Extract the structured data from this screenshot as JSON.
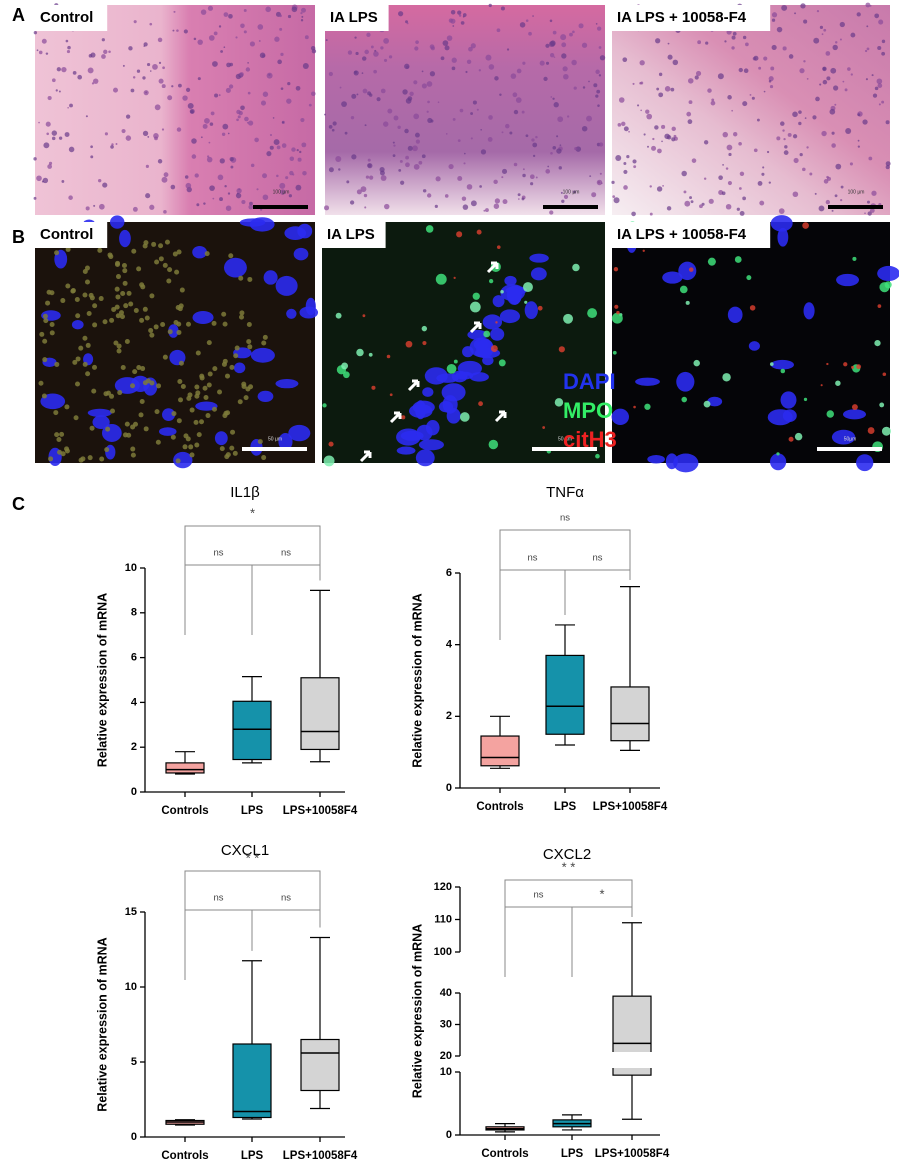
{
  "panel_labels": [
    "A",
    "B",
    "C"
  ],
  "panel_a": {
    "images": [
      {
        "label": "Control",
        "scale": "100 µm"
      },
      {
        "label": "IA LPS",
        "scale": "100 µm"
      },
      {
        "label": "IA LPS + 10058-F4",
        "scale": "100 µm"
      }
    ]
  },
  "panel_b": {
    "images": [
      {
        "label": "Control",
        "scale": "50 µm"
      },
      {
        "label": "IA LPS",
        "scale": "50 µm"
      },
      {
        "label": "IA LPS + 10058-F4",
        "scale": "50µm"
      }
    ],
    "legend": [
      {
        "text": "DAPI",
        "color": "#2233ee"
      },
      {
        "text": "MPO",
        "color": "#33ee66"
      },
      {
        "text": "citH3",
        "color": "#ee2222"
      }
    ]
  },
  "chart_data": [
    {
      "type": "box",
      "title": "IL1β",
      "ylabel": "Relative expression of mRNA",
      "categories": [
        "Controls",
        "LPS",
        "LPS+10058F4"
      ],
      "boxes": [
        {
          "min": 0.8,
          "q1": 0.85,
          "median": 1.0,
          "q3": 1.3,
          "max": 1.8,
          "color": "#f4a3a0"
        },
        {
          "min": 1.3,
          "q1": 1.45,
          "median": 2.8,
          "q3": 4.05,
          "max": 5.15,
          "color": "#1592aa"
        },
        {
          "min": 1.35,
          "q1": 1.9,
          "median": 2.7,
          "q3": 5.1,
          "max": 9.0,
          "color": "#d4d4d4"
        }
      ],
      "ylim": [
        0,
        10
      ],
      "yticks": [
        0,
        2,
        4,
        6,
        8,
        10
      ],
      "comparisons": [
        {
          "from": 0,
          "to": 2,
          "label": "*"
        },
        {
          "from": 0,
          "to": 1,
          "label": "ns"
        },
        {
          "from": 1,
          "to": 2,
          "label": "ns"
        }
      ]
    },
    {
      "type": "box",
      "title": "TNFα",
      "ylabel": "Relative expression of mRNA",
      "categories": [
        "Controls",
        "LPS",
        "LPS+10058F4"
      ],
      "boxes": [
        {
          "min": 0.55,
          "q1": 0.62,
          "median": 0.85,
          "q3": 1.45,
          "max": 2.0,
          "color": "#f4a3a0"
        },
        {
          "min": 1.2,
          "q1": 1.5,
          "median": 2.28,
          "q3": 3.7,
          "max": 4.55,
          "color": "#1592aa"
        },
        {
          "min": 1.05,
          "q1": 1.32,
          "median": 1.8,
          "q3": 2.82,
          "max": 5.62,
          "color": "#d4d4d4"
        }
      ],
      "ylim": [
        0,
        6
      ],
      "yticks": [
        0,
        2,
        4,
        6
      ],
      "comparisons": [
        {
          "from": 0,
          "to": 2,
          "label": "ns"
        },
        {
          "from": 0,
          "to": 1,
          "label": "ns"
        },
        {
          "from": 1,
          "to": 2,
          "label": "ns"
        }
      ]
    },
    {
      "type": "box",
      "title": "CXCL1",
      "ylabel": "Relative expression of mRNA",
      "categories": [
        "Controls",
        "LPS",
        "LPS+10058F4"
      ],
      "boxes": [
        {
          "min": 0.8,
          "q1": 0.85,
          "median": 1.0,
          "q3": 1.1,
          "max": 1.15,
          "color": "#f4a3a0"
        },
        {
          "min": 1.2,
          "q1": 1.3,
          "median": 1.7,
          "q3": 6.2,
          "max": 11.75,
          "color": "#1592aa"
        },
        {
          "min": 1.9,
          "q1": 3.1,
          "median": 5.6,
          "q3": 6.5,
          "max": 13.3,
          "color": "#d4d4d4"
        }
      ],
      "ylim": [
        0,
        15
      ],
      "yticks": [
        0,
        5,
        10,
        15
      ],
      "comparisons": [
        {
          "from": 0,
          "to": 2,
          "label": "* *"
        },
        {
          "from": 0,
          "to": 1,
          "label": "ns"
        },
        {
          "from": 1,
          "to": 2,
          "label": "ns"
        }
      ]
    },
    {
      "type": "box",
      "title": "CXCL2",
      "ylabel": "Relative expression of mRNA",
      "categories": [
        "Controls",
        "LPS",
        "LPS+10058F4"
      ],
      "boxes": [
        {
          "min": 0.5,
          "q1": 0.8,
          "median": 1.0,
          "q3": 1.3,
          "max": 1.8,
          "color": "#f4a3a0"
        },
        {
          "min": 0.8,
          "q1": 1.3,
          "median": 1.8,
          "q3": 2.4,
          "max": 3.2,
          "color": "#1592aa"
        },
        {
          "min": 2.5,
          "q1": 9.5,
          "median": 24,
          "q3": 39,
          "max": 109,
          "color": "#d4d4d4"
        }
      ],
      "ylim": [
        0,
        120
      ],
      "yticks": [
        0,
        10,
        20,
        30,
        40,
        100,
        110,
        120
      ],
      "axis_segments": [
        [
          0,
          10
        ],
        [
          20,
          40
        ],
        [
          100,
          120
        ]
      ],
      "comparisons": [
        {
          "from": 0,
          "to": 2,
          "label": "* *"
        },
        {
          "from": 0,
          "to": 1,
          "label": "ns"
        },
        {
          "from": 1,
          "to": 2,
          "label": "*"
        }
      ]
    }
  ]
}
